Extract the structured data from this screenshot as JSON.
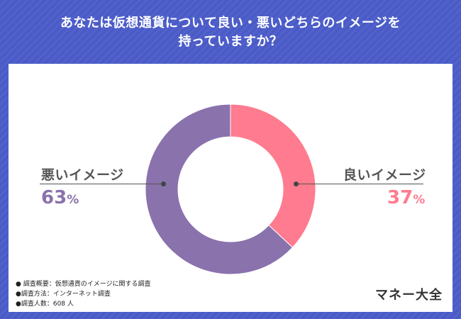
{
  "title": {
    "line1": "あなたは仮想通貨について良い・悪いどちらのイメージを",
    "line2": "持っていますか？"
  },
  "colors": {
    "background": "#4a5bc8",
    "positive": "#ff7b8f",
    "negative": "#8a72ad"
  },
  "chart_data": {
    "type": "pie",
    "donut": true,
    "categories": [
      "良いイメージ",
      "悪いイメージ"
    ],
    "values": [
      37,
      63
    ],
    "unit": "%",
    "labels": [
      {
        "name": "良いイメージ",
        "value": "37",
        "unit": "%"
      },
      {
        "name": "悪いイメージ",
        "value": "63",
        "unit": "%"
      }
    ]
  },
  "notes": [
    "● 調査概要：仮想通貨のイメージに関する調査",
    "●調査方法：インターネット調査",
    "●調査人数：608 人"
  ],
  "brand": "マネー大全"
}
